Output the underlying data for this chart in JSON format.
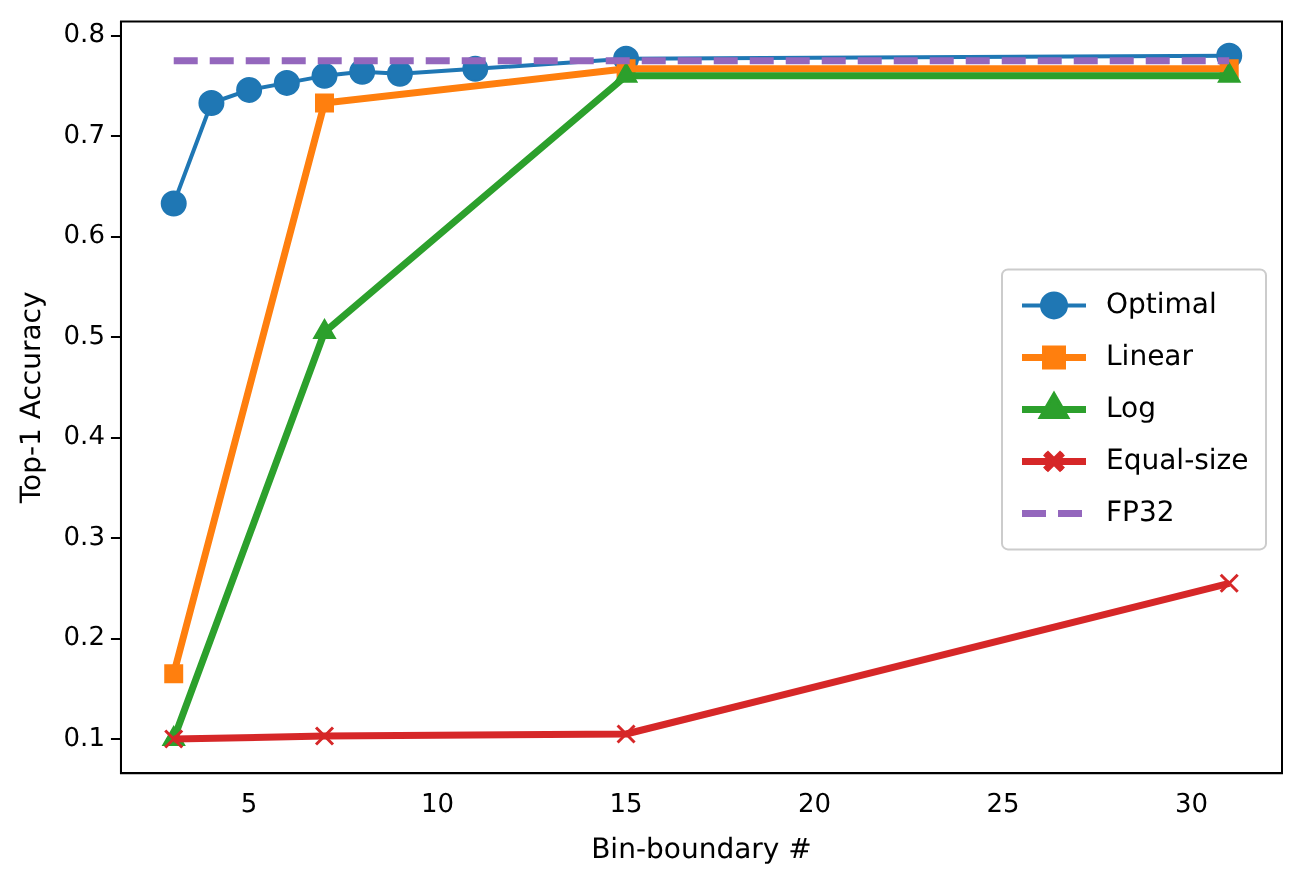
{
  "chart_data": {
    "type": "line",
    "xlabel": "Bin-boundary #",
    "ylabel": "Top-1 Accuracy",
    "xlim": [
      1.6,
      32.4
    ],
    "ylim": [
      0.066,
      0.814
    ],
    "xticks": [
      5,
      10,
      15,
      20,
      25,
      30
    ],
    "yticks": [
      0.1,
      0.2,
      0.3,
      0.4,
      0.5,
      0.6,
      0.7,
      0.8
    ],
    "legend": "right",
    "grid": false,
    "series": [
      {
        "name": "Optimal",
        "color": "#1f77b4",
        "marker": "circle",
        "line_style": "solid",
        "x": [
          3,
          4,
          5,
          6,
          7,
          8,
          9,
          11,
          15,
          31
        ],
        "values": [
          0.633,
          0.733,
          0.746,
          0.753,
          0.76,
          0.764,
          0.762,
          0.767,
          0.777,
          0.78
        ]
      },
      {
        "name": "Linear",
        "color": "#ff7f0e",
        "marker": "square",
        "line_style": "solid",
        "x": [
          3,
          7,
          15,
          31
        ],
        "values": [
          0.165,
          0.733,
          0.767,
          0.767
        ]
      },
      {
        "name": "Log",
        "color": "#2ca02c",
        "marker": "triangle",
        "line_style": "solid",
        "x": [
          3,
          7,
          15,
          31
        ],
        "values": [
          0.1,
          0.505,
          0.76,
          0.76
        ]
      },
      {
        "name": "Equal-size",
        "color": "#d62728",
        "marker": "cross",
        "line_style": "solid",
        "x": [
          3,
          7,
          15,
          31
        ],
        "values": [
          0.1,
          0.103,
          0.105,
          0.255
        ]
      },
      {
        "name": "FP32",
        "color": "#9467bd",
        "marker": "none",
        "line_style": "dashed",
        "x": [
          3,
          31
        ],
        "values": [
          0.775,
          0.775
        ]
      }
    ]
  }
}
